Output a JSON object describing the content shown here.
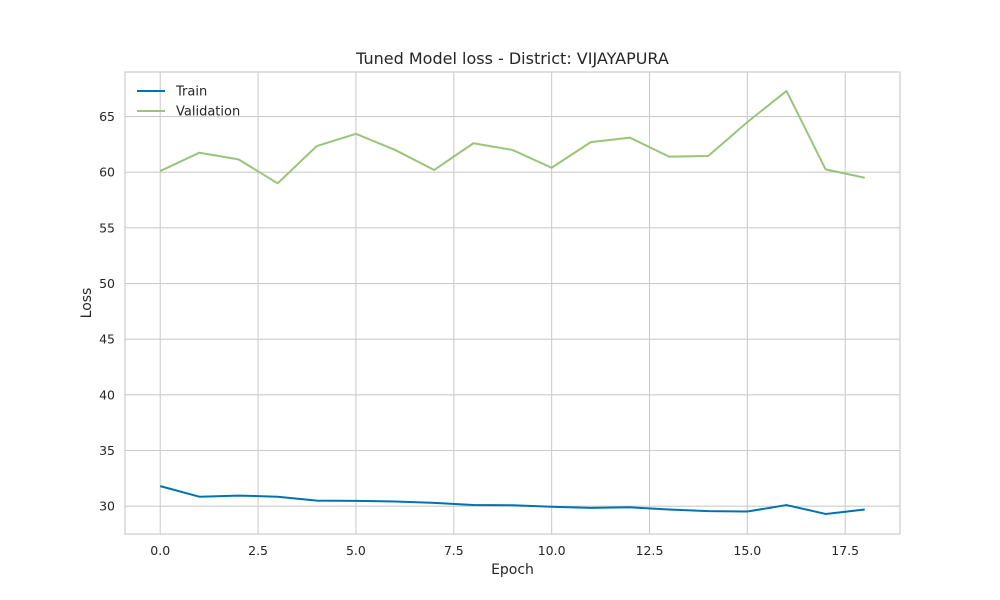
{
  "chart_data": {
    "type": "line",
    "title": "Tuned Model loss - District: VIJAYAPURA",
    "xlabel": "Epoch",
    "ylabel": "Loss",
    "xlim": [
      -0.9,
      18.9
    ],
    "ylim": [
      27.5,
      69.0
    ],
    "x_ticks": [
      0.0,
      2.5,
      5.0,
      7.5,
      10.0,
      12.5,
      15.0,
      17.5
    ],
    "x_tick_labels": [
      "0.0",
      "2.5",
      "5.0",
      "7.5",
      "10.0",
      "12.5",
      "15.0",
      "17.5"
    ],
    "y_ticks": [
      30,
      35,
      40,
      45,
      50,
      55,
      60,
      65
    ],
    "y_tick_labels": [
      "30",
      "35",
      "40",
      "45",
      "50",
      "55",
      "60",
      "65"
    ],
    "grid": true,
    "legend_position": "top-left",
    "x": [
      0,
      1,
      2,
      3,
      4,
      5,
      6,
      7,
      8,
      9,
      10,
      11,
      12,
      13,
      14,
      15,
      16,
      17,
      18
    ],
    "series": [
      {
        "name": "Train",
        "color": "#0072b2",
        "values": [
          31.8,
          30.85,
          30.95,
          30.85,
          30.5,
          30.48,
          30.42,
          30.3,
          30.1,
          30.08,
          29.95,
          29.85,
          29.9,
          29.7,
          29.55,
          29.52,
          30.1,
          29.3,
          29.7
        ]
      },
      {
        "name": "Validation",
        "color": "#9bc47a",
        "values": [
          60.1,
          61.75,
          61.15,
          59.0,
          62.35,
          63.45,
          62.0,
          60.2,
          62.6,
          62.0,
          60.4,
          62.7,
          63.1,
          61.4,
          61.45,
          64.5,
          67.3,
          60.25,
          59.5
        ]
      }
    ]
  }
}
